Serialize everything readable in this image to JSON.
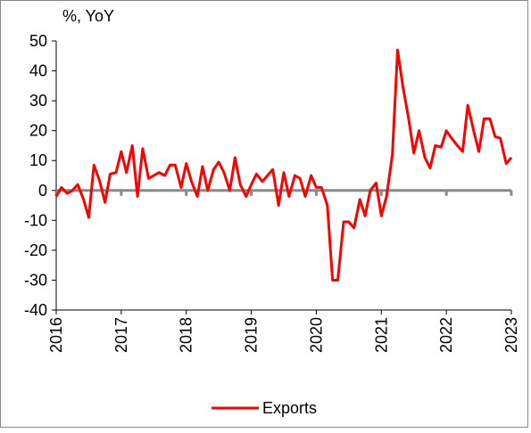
{
  "chart_data": {
    "type": "line",
    "y_axis_label": "%, YoY",
    "x": [
      2016.0,
      2016.08,
      2016.17,
      2016.25,
      2016.33,
      2016.42,
      2016.5,
      2016.58,
      2016.67,
      2016.75,
      2016.83,
      2016.92,
      2017.0,
      2017.08,
      2017.17,
      2017.25,
      2017.33,
      2017.42,
      2017.5,
      2017.58,
      2017.67,
      2017.75,
      2017.83,
      2017.92,
      2018.0,
      2018.08,
      2018.17,
      2018.25,
      2018.33,
      2018.42,
      2018.5,
      2018.58,
      2018.67,
      2018.75,
      2018.83,
      2018.92,
      2019.0,
      2019.08,
      2019.17,
      2019.25,
      2019.33,
      2019.42,
      2019.5,
      2019.58,
      2019.67,
      2019.75,
      2019.83,
      2019.92,
      2020.0,
      2020.08,
      2020.17,
      2020.25,
      2020.33,
      2020.42,
      2020.5,
      2020.58,
      2020.67,
      2020.75,
      2020.83,
      2020.92,
      2021.0,
      2021.08,
      2021.17,
      2021.25,
      2021.33,
      2021.42,
      2021.5,
      2021.58,
      2021.67,
      2021.75,
      2021.83,
      2021.92,
      2022.0,
      2022.08,
      2022.17,
      2022.25,
      2022.33,
      2022.42,
      2022.5,
      2022.58,
      2022.67,
      2022.75,
      2022.83,
      2022.92,
      2023.0
    ],
    "series": [
      {
        "name": "Exports",
        "color": "#ff0000",
        "values": [
          -2,
          1,
          -1,
          0,
          2,
          -3,
          -9,
          8.5,
          3,
          -4,
          5.5,
          6,
          13,
          6,
          15,
          -2,
          14,
          4,
          5,
          6,
          5,
          8.5,
          8.5,
          1,
          9,
          3,
          -2,
          8,
          0,
          7,
          9.5,
          6,
          0,
          11,
          2,
          -2,
          2,
          5.5,
          3,
          5,
          7,
          -5,
          6,
          -2,
          5,
          4,
          -2,
          5,
          1,
          1,
          -5,
          -30,
          -30,
          -10.5,
          -10.5,
          -12.5,
          -3,
          -8.5,
          0,
          2.5,
          -8.5,
          -2,
          12,
          47,
          35,
          24,
          12.5,
          20,
          11,
          7.5,
          15,
          14.5,
          20,
          17.5,
          15,
          13,
          28.5,
          20,
          13,
          24,
          24,
          18,
          17.5,
          9,
          11
        ]
      }
    ],
    "xlim": [
      2016,
      2023
    ],
    "xticks": [
      2016,
      2017,
      2018,
      2019,
      2020,
      2021,
      2022,
      2023
    ],
    "ylim": [
      -40,
      50
    ],
    "yticks": [
      -40,
      -30,
      -20,
      -10,
      0,
      10,
      20,
      30,
      40,
      50
    ],
    "grid": false,
    "legend": "bottom"
  }
}
